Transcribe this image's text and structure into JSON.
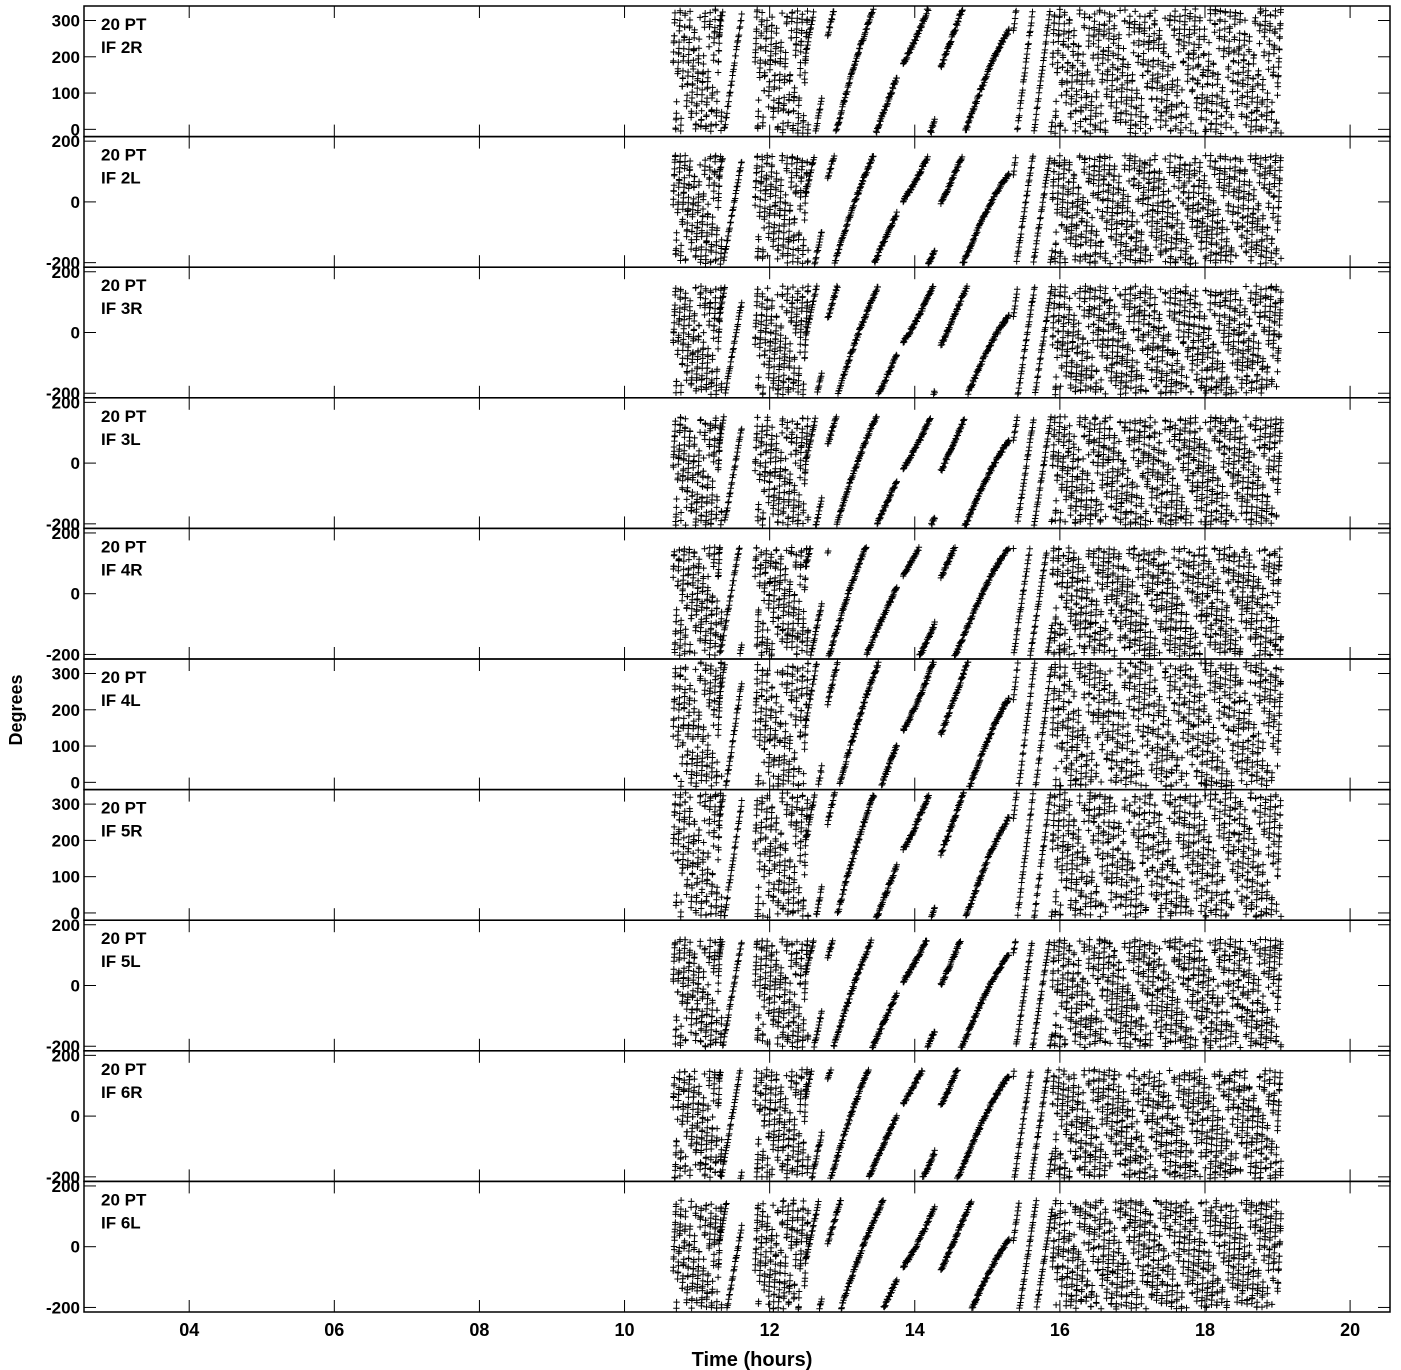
{
  "chart_data": {
    "type": "scatter",
    "title": "",
    "xlabel": "Time (hours)",
    "ylabel": "Degrees",
    "x_range": [
      2.55,
      20.55
    ],
    "x_ticks": [
      "04",
      "06",
      "08",
      "10",
      "12",
      "14",
      "16",
      "18",
      "20"
    ],
    "x_tick_values": [
      4,
      6,
      8,
      10,
      12,
      14,
      16,
      18,
      20
    ],
    "data_span_hours": [
      10.67,
      19.05
    ],
    "marker": "+",
    "grid": false,
    "panels": [
      {
        "line1": "20 PT",
        "line2": "IF 2R",
        "ylim": [
          -20,
          340
        ],
        "yticks": [
          0,
          100,
          200,
          300
        ],
        "ytick_labels": [
          "0",
          "100",
          "200",
          "300"
        ],
        "offset": 180
      },
      {
        "line1": "20 PT",
        "line2": "IF 2L",
        "ylim": [
          -215,
          215
        ],
        "yticks": [
          -200,
          0,
          200
        ],
        "ytick_labels": [
          "-200",
          "0",
          "200"
        ],
        "offset": 0
      },
      {
        "line1": "20 PT",
        "line2": "IF 3R",
        "ylim": [
          -215,
          215
        ],
        "yticks": [
          -200,
          0,
          200
        ],
        "ytick_labels": [
          "-200",
          "0",
          "200"
        ],
        "offset": -35
      },
      {
        "line1": "20 PT",
        "line2": "IF 3L",
        "ylim": [
          -215,
          215
        ],
        "yticks": [
          -200,
          0,
          200
        ],
        "ytick_labels": [
          "-200",
          "0",
          "200"
        ],
        "offset": -20
      },
      {
        "line1": "20 PT",
        "line2": "IF 4R",
        "ylim": [
          -215,
          215
        ],
        "yticks": [
          -200,
          0,
          200
        ],
        "ytick_labels": [
          "-200",
          "0",
          "200"
        ],
        "offset": 60
      },
      {
        "line1": "20 PT",
        "line2": "IF 4L",
        "ylim": [
          -20,
          340
        ],
        "yticks": [
          0,
          100,
          200,
          300
        ],
        "ytick_labels": [
          "0",
          "100",
          "200",
          "300"
        ],
        "offset": 140
      },
      {
        "line1": "20 PT",
        "line2": "IF 5R",
        "ylim": [
          -20,
          340
        ],
        "yticks": [
          0,
          100,
          200,
          300
        ],
        "ytick_labels": [
          "0",
          "100",
          "200",
          "300"
        ],
        "offset": 170
      },
      {
        "line1": "20 PT",
        "line2": "IF 5L",
        "ylim": [
          -215,
          215
        ],
        "yticks": [
          -200,
          0,
          200
        ],
        "ytick_labels": [
          "-200",
          "0",
          "200"
        ],
        "offset": 10
      },
      {
        "line1": "20 PT",
        "line2": "IF 6R",
        "ylim": [
          -215,
          215
        ],
        "yticks": [
          -200,
          0,
          200
        ],
        "ytick_labels": [
          "-200",
          "0",
          "200"
        ],
        "offset": 40
      },
      {
        "line1": "20 PT",
        "line2": "IF 6L",
        "ylim": [
          -215,
          215
        ],
        "yticks": [
          -200,
          0,
          200
        ],
        "ytick_labels": [
          "-200",
          "0",
          "200"
        ],
        "offset": -70
      }
    ]
  }
}
